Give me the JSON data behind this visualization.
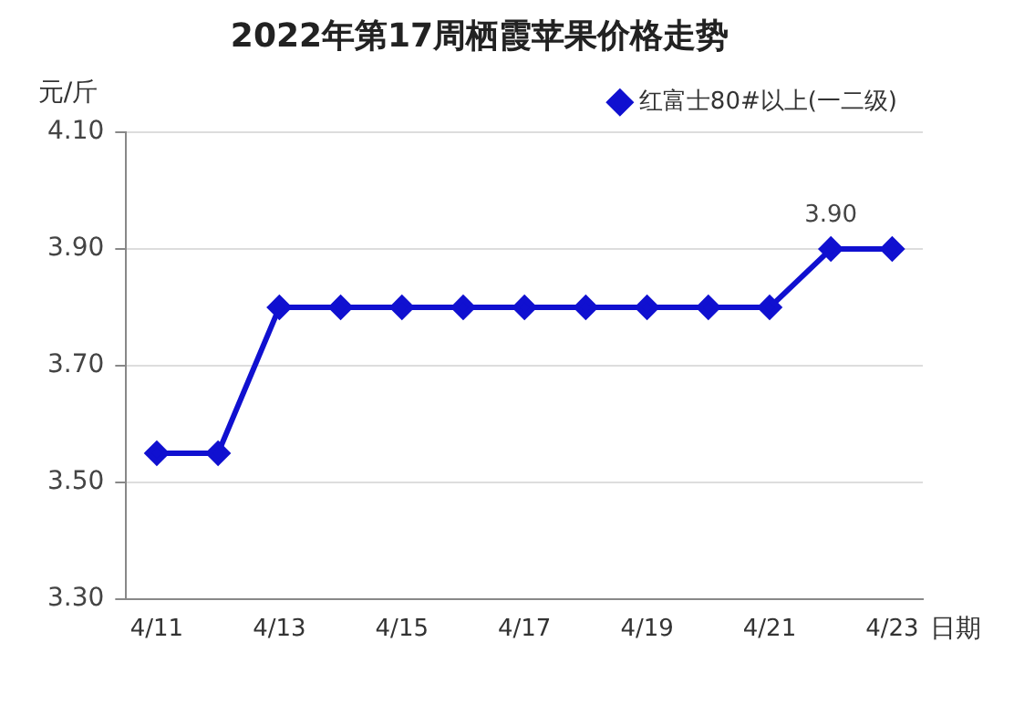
{
  "chart_data": {
    "type": "line",
    "title": "2022年第17周栖霞苹果价格走势",
    "ylabel": "元/斤",
    "xlabel": "日期",
    "categories": [
      "4/11",
      null,
      "4/13",
      null,
      "4/15",
      null,
      "4/17",
      null,
      "4/19",
      null,
      "4/21",
      null,
      "4/23"
    ],
    "series": [
      {
        "name": "红富士80#以上(一二级)",
        "color": "#1010d0",
        "values": [
          3.55,
          3.55,
          3.8,
          3.8,
          3.8,
          3.8,
          3.8,
          3.8,
          3.8,
          3.8,
          3.8,
          3.9,
          3.9
        ],
        "value_labels": [
          null,
          null,
          null,
          null,
          null,
          null,
          null,
          null,
          null,
          null,
          null,
          "3.90",
          null
        ]
      }
    ],
    "ylim": [
      3.3,
      4.1
    ],
    "yticks": [
      {
        "value": 3.3,
        "label": "3.30"
      },
      {
        "value": 3.5,
        "label": "3.50"
      },
      {
        "value": 3.7,
        "label": "3.70"
      },
      {
        "value": 3.9,
        "label": "3.90"
      },
      {
        "value": 4.1,
        "label": "4.10"
      }
    ],
    "grid": "y",
    "legend": "top right",
    "marker": "diamond",
    "line_style": "solid"
  }
}
